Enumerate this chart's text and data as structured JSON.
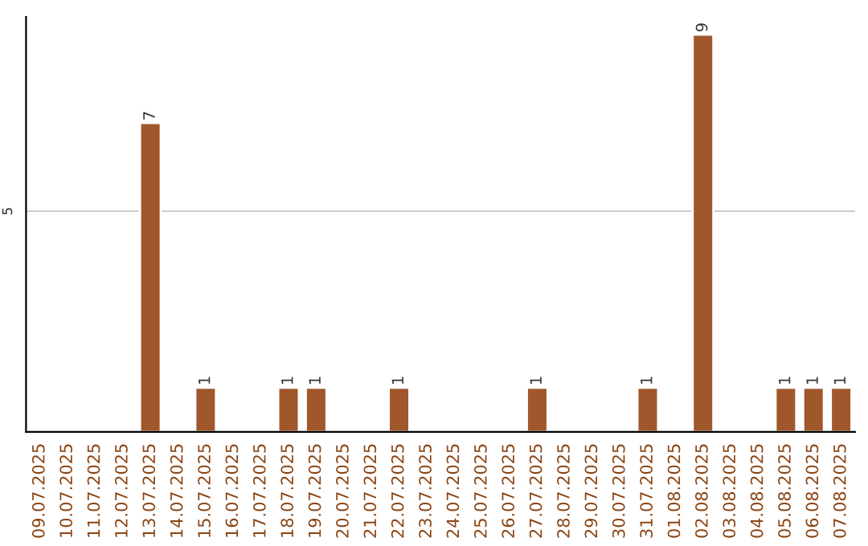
{
  "chart_data": {
    "type": "bar",
    "categories": [
      "09.07.2025",
      "10.07.2025",
      "11.07.2025",
      "12.07.2025",
      "13.07.2025",
      "14.07.2025",
      "15.07.2025",
      "16.07.2025",
      "17.07.2025",
      "18.07.2025",
      "19.07.2025",
      "20.07.2025",
      "21.07.2025",
      "22.07.2025",
      "23.07.2025",
      "24.07.2025",
      "25.07.2025",
      "26.07.2025",
      "27.07.2025",
      "28.07.2025",
      "29.07.2025",
      "30.07.2025",
      "31.07.2025",
      "01.08.2025",
      "02.08.2025",
      "03.08.2025",
      "04.08.2025",
      "05.08.2025",
      "06.08.2025",
      "07.08.2025"
    ],
    "values": [
      null,
      null,
      null,
      null,
      7,
      null,
      1,
      null,
      null,
      1,
      1,
      null,
      null,
      1,
      null,
      null,
      null,
      null,
      1,
      null,
      null,
      null,
      1,
      null,
      9,
      null,
      null,
      1,
      1,
      1
    ],
    "value_labels": [
      null,
      null,
      null,
      null,
      "7",
      null,
      "1",
      null,
      null,
      "1",
      "1",
      null,
      null,
      "1",
      null,
      null,
      null,
      null,
      "1",
      null,
      null,
      null,
      "1",
      null,
      "9",
      null,
      null,
      "1",
      "1",
      "1"
    ],
    "color": "#a0572b",
    "ylim": [
      0,
      9.4
    ],
    "yticks": [
      5
    ],
    "grid": "y",
    "legend": false
  }
}
